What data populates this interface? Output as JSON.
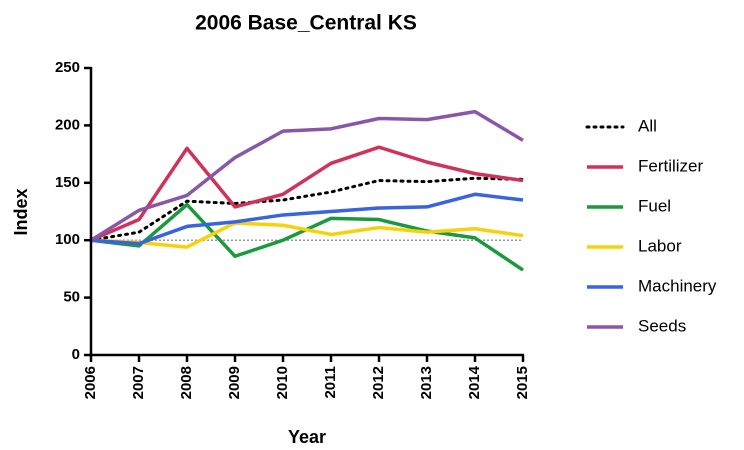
{
  "chart_data": {
    "type": "line",
    "title": "2006 Base_Central KS",
    "xlabel": "Year",
    "ylabel": "Index",
    "x": [
      2006,
      2007,
      2008,
      2009,
      2010,
      2011,
      2012,
      2013,
      2014,
      2015
    ],
    "xlim": [
      2006,
      2015
    ],
    "xticks": [
      2006,
      2007,
      2008,
      2009,
      2010,
      2011,
      2012,
      2013,
      2014,
      2015
    ],
    "ylim": [
      0,
      250
    ],
    "yticks": [
      0,
      50,
      100,
      150,
      200,
      250
    ],
    "reference_line": 100,
    "grid": false,
    "legend": "right",
    "series": [
      {
        "name": "All",
        "color": "#000000",
        "style": "dotted",
        "values": [
          100,
          107,
          134,
          132,
          135,
          142,
          152,
          151,
          154,
          153
        ]
      },
      {
        "name": "Fertilizer",
        "color": "#d0325a",
        "style": "solid",
        "values": [
          100,
          118,
          180,
          129,
          140,
          167,
          181,
          168,
          158,
          152
        ]
      },
      {
        "name": "Fuel",
        "color": "#1a9a3a",
        "style": "solid",
        "values": [
          100,
          95,
          131,
          86,
          100,
          119,
          118,
          108,
          102,
          74
        ]
      },
      {
        "name": "Labor",
        "color": "#f5d20a",
        "style": "solid",
        "values": [
          100,
          98,
          94,
          115,
          113,
          105,
          111,
          107,
          110,
          104
        ]
      },
      {
        "name": "Machinery",
        "color": "#3a63e0",
        "style": "solid",
        "values": [
          100,
          97,
          112,
          116,
          122,
          125,
          128,
          129,
          140,
          135
        ]
      },
      {
        "name": "Seeds",
        "color": "#8a57a8",
        "style": "solid",
        "values": [
          100,
          126,
          139,
          172,
          195,
          197,
          206,
          205,
          212,
          187
        ]
      }
    ]
  }
}
